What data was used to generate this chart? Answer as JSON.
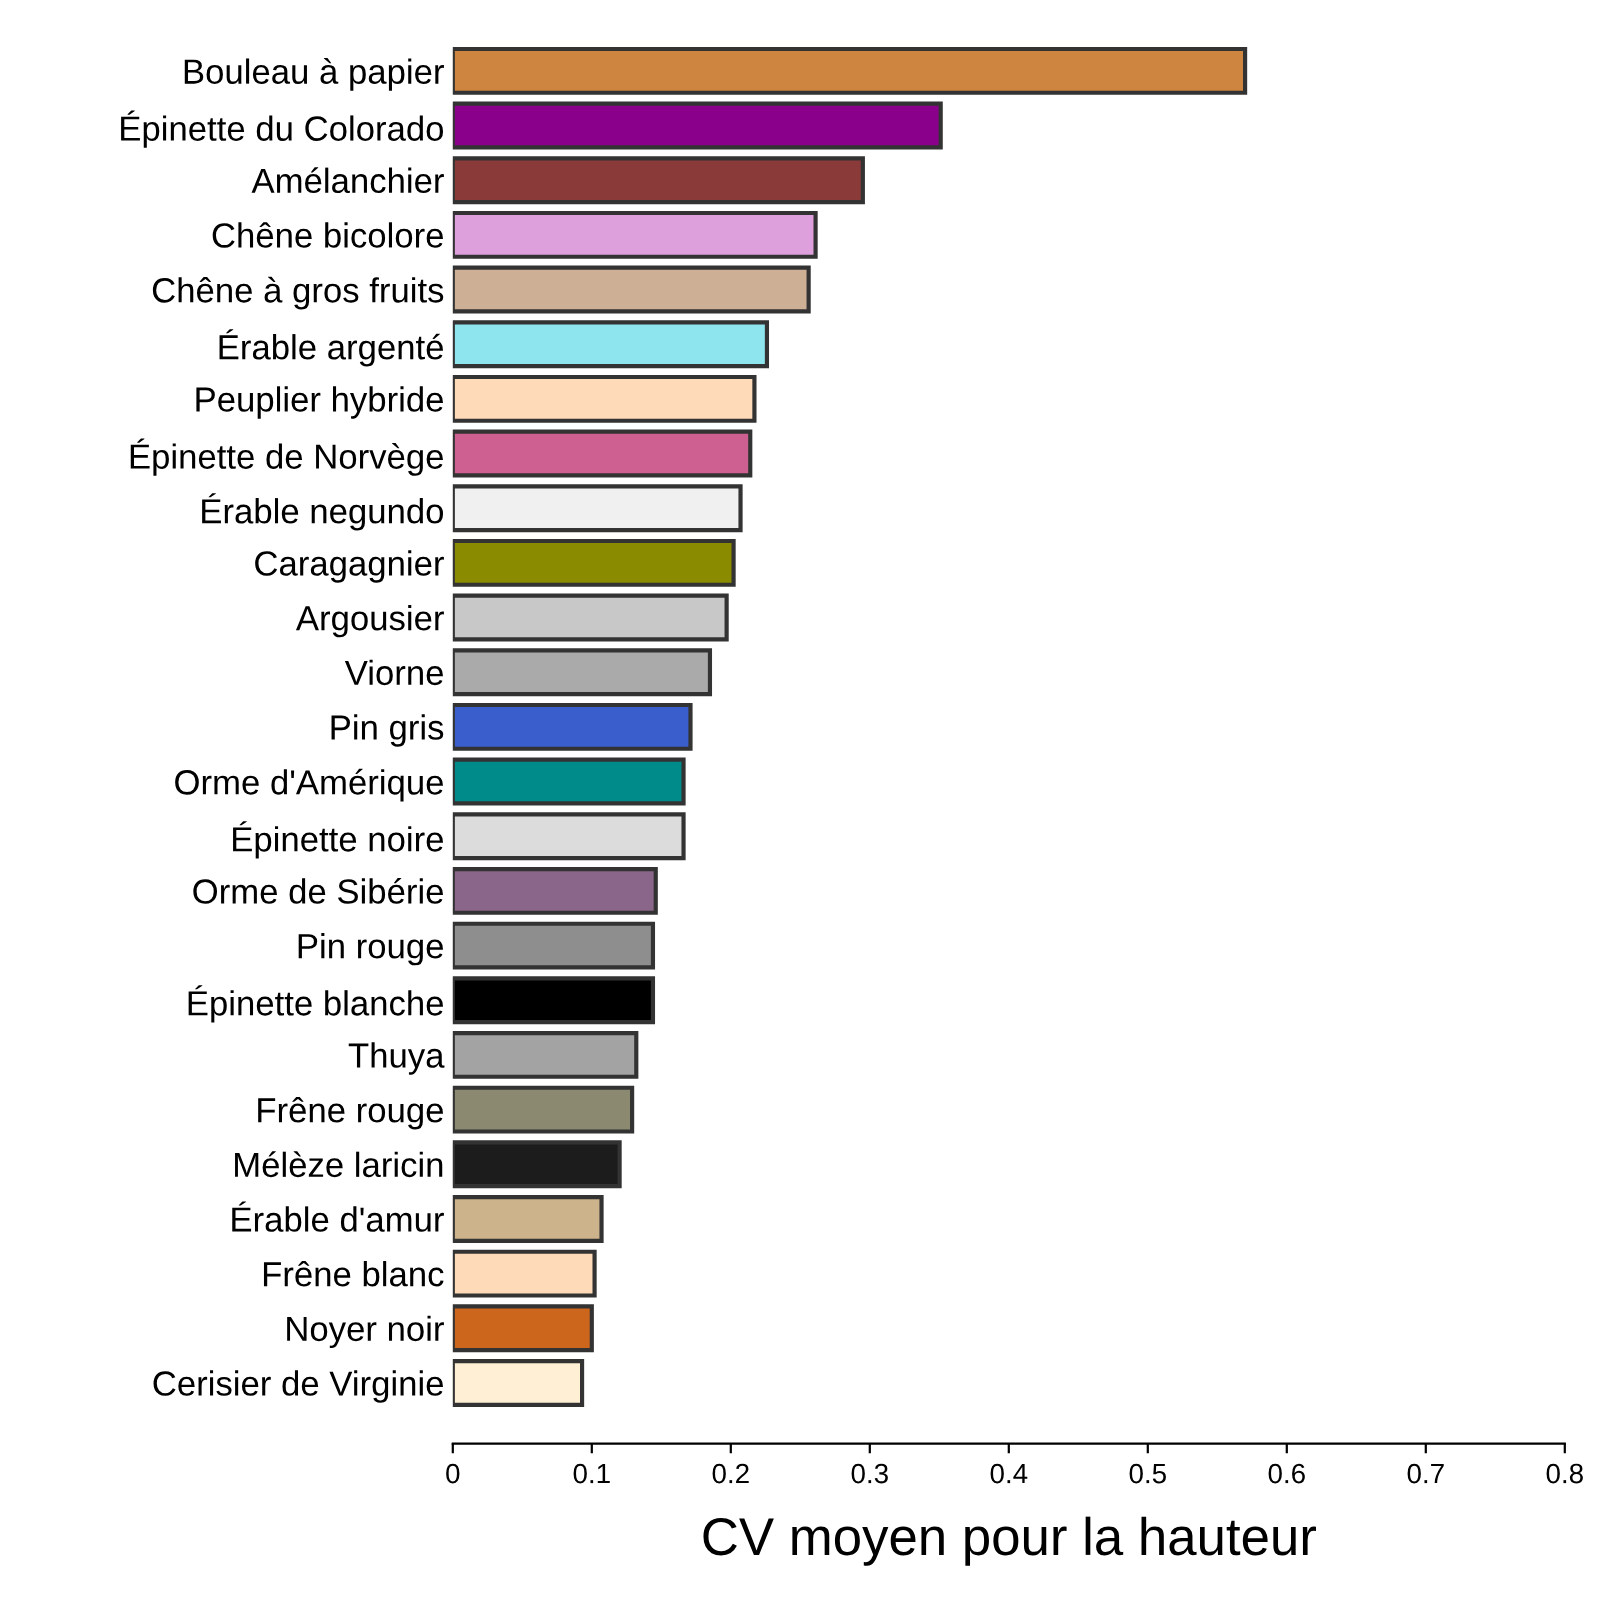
{
  "chart_data": {
    "type": "bar",
    "orientation": "horizontal",
    "xlabel": "CV moyen pour la hauteur",
    "categories": [
      "Bouleau à papier",
      "Épinette du Colorado",
      "Amélanchier",
      "Chêne bicolore",
      "Chêne à gros fruits",
      "Érable argenté",
      "Peuplier hybride",
      "Épinette de Norvège",
      "Érable negundo",
      "Caragagnier",
      "Argousier",
      "Viorne",
      "Pin gris",
      "Orme d'Amérique",
      "Épinette noire",
      "Orme de Sibérie",
      "Pin rouge",
      "Épinette blanche",
      "Thuya",
      "Frêne rouge",
      "Mélèze laricin",
      "Érable d'amur",
      "Frêne blanc",
      "Noyer noir",
      "Cerisier de Virginie"
    ],
    "values": [
      0.57,
      0.351,
      0.295,
      0.261,
      0.256,
      0.226,
      0.217,
      0.214,
      0.207,
      0.202,
      0.197,
      0.185,
      0.171,
      0.166,
      0.166,
      0.146,
      0.144,
      0.144,
      0.132,
      0.129,
      0.12,
      0.107,
      0.102,
      0.1,
      0.093
    ],
    "colors": [
      "#cd853f",
      "#8b008b",
      "#8b3a3a",
      "#dda0dd",
      "#cdaf95",
      "#8ee5ee",
      "#ffdab9",
      "#cd6090",
      "#f0f0f0",
      "#8b8b00",
      "#c8c8c8",
      "#aaaaaa",
      "#3a5fcd",
      "#008b8b",
      "#dcdcdc",
      "#8b668b",
      "#8e8e8e",
      "#000000",
      "#a3a3a3",
      "#8b8970",
      "#1c1c1c",
      "#cdb38b",
      "#ffdab9",
      "#cd661d",
      "#ffefd5"
    ],
    "xlim": [
      0,
      0.8
    ],
    "xticks": [
      0,
      0.1,
      0.2,
      0.3,
      0.4,
      0.5,
      0.6,
      0.7,
      0.8
    ],
    "grid": false,
    "legend": false
  }
}
